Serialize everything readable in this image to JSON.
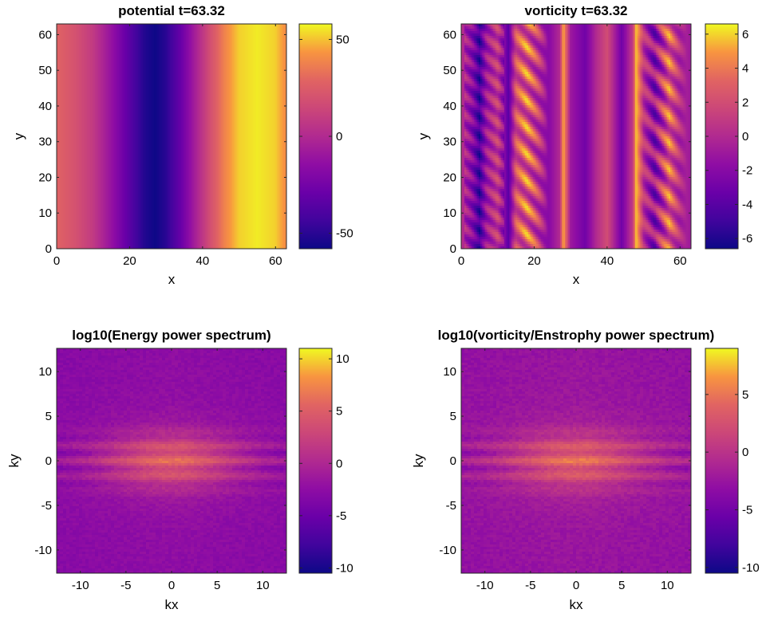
{
  "chart_data": [
    {
      "type": "heatmap",
      "title": "potential t=63.32",
      "xlabel": "x",
      "ylabel": "y",
      "xlim": [
        0,
        63
      ],
      "ylim": [
        0,
        63
      ],
      "xticks": [
        "0",
        "20",
        "40",
        "60"
      ],
      "yticks": [
        "0",
        "10",
        "20",
        "30",
        "40",
        "50",
        "60"
      ],
      "colormap": "plasma",
      "clim": [
        -58,
        58
      ],
      "colorbar_ticks": [
        "-50",
        "0",
        "50"
      ],
      "profile_along_x": {
        "x": [
          0,
          5,
          10,
          15,
          20,
          24,
          27,
          30,
          34,
          38,
          42,
          46,
          50,
          55,
          60,
          63
        ],
        "value": [
          28,
          20,
          8,
          -12,
          -35,
          -52,
          -58,
          -50,
          -30,
          -5,
          18,
          38,
          52,
          56,
          52,
          40
        ]
      },
      "pattern": "stripes"
    },
    {
      "type": "heatmap",
      "title": "vorticity t=63.32",
      "xlabel": "x",
      "ylabel": "y",
      "xlim": [
        0,
        63
      ],
      "ylim": [
        0,
        63
      ],
      "xticks": [
        "0",
        "20",
        "40",
        "60"
      ],
      "yticks": [
        "0",
        "10",
        "20",
        "30",
        "40",
        "50",
        "60"
      ],
      "colormap": "plasma",
      "clim": [
        -6.6,
        6.6
      ],
      "colorbar_ticks": [
        "-6",
        "-4",
        "-2",
        "0",
        "2",
        "4",
        "6"
      ],
      "profile_along_x": {
        "x": [
          0,
          3,
          5,
          7,
          10,
          13,
          15,
          18,
          21,
          24,
          27,
          28,
          30,
          34,
          37,
          40,
          44,
          47,
          48,
          50,
          53,
          57,
          60,
          63
        ],
        "value": [
          0.5,
          -2,
          -5,
          -1,
          1,
          -4,
          2,
          3,
          1,
          -2,
          0,
          5.5,
          -1,
          -3,
          0,
          2,
          -3,
          1,
          6,
          0.5,
          -2,
          3,
          0,
          -1
        ]
      },
      "pattern": "stripes-with-chevrons"
    },
    {
      "type": "heatmap",
      "title": "log10(Energy power spectrum)",
      "xlabel": "kx",
      "ylabel": "ky",
      "xlim": [
        -12.6,
        12.6
      ],
      "ylim": [
        -12.6,
        12.6
      ],
      "xticks": [
        "-10",
        "-5",
        "0",
        "5",
        "10"
      ],
      "yticks": [
        "-10",
        "-5",
        "0",
        "5",
        "10"
      ],
      "colormap": "plasma",
      "clim": [
        -10.5,
        11
      ],
      "colorbar_ticks": [
        "-10",
        "-5",
        "0",
        "5",
        "10"
      ],
      "peak_value": 5,
      "background_value": -2,
      "pattern": "centered-spectrum"
    },
    {
      "type": "heatmap",
      "title": "log10(vorticity/Enstrophy power spectrum)",
      "xlabel": "kx",
      "ylabel": "ky",
      "xlim": [
        -12.6,
        12.6
      ],
      "ylim": [
        -12.6,
        12.6
      ],
      "xticks": [
        "-10",
        "-5",
        "0",
        "5",
        "10"
      ],
      "yticks": [
        "-10",
        "-5",
        "0",
        "5",
        "10"
      ],
      "colormap": "plasma",
      "clim": [
        -10.5,
        9
      ],
      "colorbar_ticks": [
        "-10",
        "-5",
        "0",
        "5"
      ],
      "peak_value": 4,
      "background_value": -2,
      "pattern": "centered-spectrum"
    }
  ]
}
